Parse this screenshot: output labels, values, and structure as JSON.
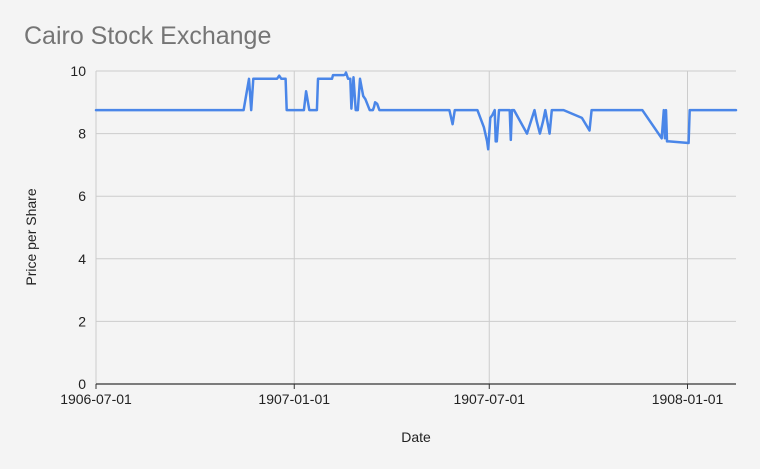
{
  "chart_data": {
    "type": "line",
    "title": "Cairo Stock Exchange",
    "xlabel": "Date",
    "ylabel": "Price per Share",
    "xlim": [
      "1906-07-01",
      "1908-02-15"
    ],
    "ylim": [
      0,
      10
    ],
    "y_ticks": [
      "0",
      "2",
      "4",
      "6",
      "8",
      "10"
    ],
    "x_ticks": [
      "1906-07-01",
      "1907-01-01",
      "1907-07-01",
      "1908-01-01"
    ],
    "grid": true,
    "line_color": "#4a86e8",
    "series": [
      {
        "x": [
          "1906-07-01",
          "1906-11-15",
          "1906-11-20",
          "1906-11-22",
          "1906-11-24",
          "1906-12-05",
          "1906-12-16",
          "1906-12-18",
          "1906-12-20",
          "1906-12-22",
          "1906-12-24",
          "1906-12-25",
          "1907-01-10",
          "1907-01-12",
          "1907-01-15",
          "1907-01-22",
          "1907-01-23",
          "1907-02-05",
          "1907-02-06",
          "1907-02-16",
          "1907-02-17",
          "1907-02-18",
          "1907-02-20",
          "1907-02-22",
          "1907-02-23",
          "1907-02-25",
          "1907-02-27",
          "1907-03-01",
          "1907-03-03",
          "1907-03-06",
          "1907-03-08",
          "1907-03-12",
          "1907-03-15",
          "1907-03-16",
          "1907-03-17",
          "1907-03-19",
          "1907-03-21",
          "1907-03-23",
          "1907-05-25",
          "1907-05-28",
          "1907-05-30",
          "1907-06-05",
          "1907-06-20",
          "1907-06-26",
          "1907-06-29",
          "1907-06-30",
          "1907-07-02",
          "1907-07-04",
          "1907-07-06",
          "1907-07-07",
          "1907-07-08",
          "1907-07-10",
          "1907-07-20",
          "1907-07-21",
          "1907-07-22",
          "1907-07-24",
          "1907-08-05",
          "1907-08-12",
          "1907-08-14",
          "1907-08-17",
          "1907-08-20",
          "1907-08-22",
          "1907-08-26",
          "1907-08-28",
          "1907-09-01",
          "1907-09-05",
          "1907-09-08",
          "1907-09-25",
          "1907-10-02",
          "1907-10-04",
          "1907-10-08",
          "1907-11-20",
          "1907-12-08",
          "1907-12-10",
          "1907-12-11",
          "1907-12-12",
          "1907-12-13",
          "1907-12-15",
          "1908-01-02",
          "1908-01-03",
          "1908-01-08",
          "1908-02-15"
        ],
        "values": [
          8.75,
          8.75,
          9.75,
          8.75,
          9.75,
          9.75,
          9.75,
          9.85,
          9.75,
          9.75,
          9.75,
          8.75,
          8.75,
          9.35,
          8.75,
          8.75,
          9.75,
          9.75,
          9.87,
          9.87,
          9.88,
          9.95,
          9.75,
          9.75,
          8.8,
          9.8,
          8.75,
          8.75,
          9.75,
          9.2,
          9.1,
          8.75,
          8.75,
          8.85,
          9.0,
          8.95,
          8.75,
          8.75,
          8.75,
          8.3,
          8.75,
          8.75,
          8.75,
          8.2,
          7.75,
          7.5,
          8.5,
          8.6,
          8.75,
          7.75,
          7.75,
          8.75,
          8.75,
          7.8,
          8.75,
          8.75,
          8.0,
          8.75,
          8.4,
          8.0,
          8.4,
          8.75,
          8.0,
          8.75,
          8.75,
          8.75,
          8.75,
          8.5,
          8.1,
          8.75,
          8.75,
          8.75,
          7.85,
          8.75,
          7.85,
          8.75,
          7.75,
          7.75,
          7.7,
          8.75,
          8.75,
          8.75
        ]
      }
    ]
  }
}
